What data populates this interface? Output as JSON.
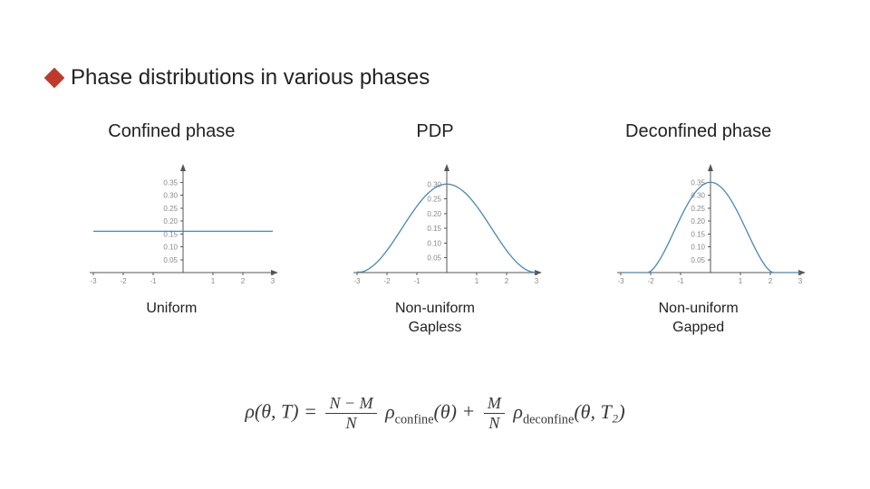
{
  "header": {
    "title": "Phase distributions in various phases"
  },
  "panels": [
    {
      "title": "Confined phase",
      "sub": "Uniform",
      "chart": {
        "type": "line",
        "xlim": [
          -3,
          3
        ],
        "xtick_step": 1,
        "ylim": [
          0,
          0.4
        ],
        "yticks": [
          0.05,
          0.1,
          0.15,
          0.2,
          0.25,
          0.3,
          0.35
        ],
        "curve_color": "#4a88b5",
        "axis_color": "#555",
        "tick_color": "#888",
        "shape": "flat",
        "flat_value": 0.16,
        "background_color": "#ffffff"
      }
    },
    {
      "title": "PDP",
      "sub": "Non-uniform\nGapless",
      "chart": {
        "type": "line",
        "xlim": [
          -3,
          3
        ],
        "xtick_step": 1,
        "ylim": [
          0,
          0.35
        ],
        "yticks": [
          0.05,
          0.1,
          0.15,
          0.2,
          0.25,
          0.3
        ],
        "curve_color": "#4a88b5",
        "axis_color": "#555",
        "tick_color": "#888",
        "shape": "bell_gapless",
        "peak": 0.3,
        "background_color": "#ffffff"
      }
    },
    {
      "title": "Deconfined phase",
      "sub": "Non-uniform\nGapped",
      "chart": {
        "type": "line",
        "xlim": [
          -3,
          3
        ],
        "xtick_step": 1,
        "ylim": [
          0,
          0.4
        ],
        "yticks": [
          0.05,
          0.1,
          0.15,
          0.2,
          0.25,
          0.3,
          0.35
        ],
        "curve_color": "#4a88b5",
        "axis_color": "#555",
        "tick_color": "#888",
        "shape": "bell_gapped",
        "peak": 0.35,
        "gap_start": -2.1,
        "gap_end": 2.1,
        "background_color": "#ffffff"
      }
    }
  ],
  "formula": {
    "lhs": "ρ(θ, T)",
    "frac1_num": "N − M",
    "frac1_den": "N",
    "term1": "ρ",
    "term1_sub": "confine",
    "term1_arg": "(θ)",
    "frac2_num": "M",
    "frac2_den": "N",
    "term2": "ρ",
    "term2_sub": "deconfine",
    "term2_arg": "(θ, T₂)"
  }
}
